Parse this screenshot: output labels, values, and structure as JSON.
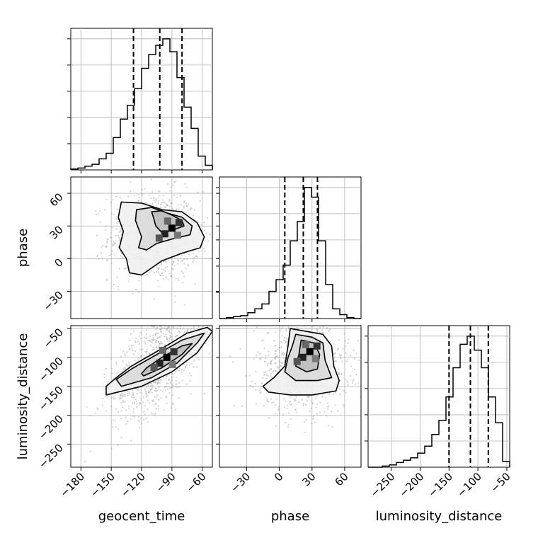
{
  "chart_data": {
    "type": "corner",
    "parameters": [
      {
        "name": "geocent_time",
        "label": "geocent_time",
        "range": [
          -190,
          -50
        ],
        "ticks": [
          -180,
          -150,
          -120,
          -90,
          -60
        ],
        "tick_labels": [
          "−180",
          "−150",
          "−120",
          "−90",
          "−60"
        ],
        "quantiles": [
          -128,
          -102,
          -80
        ],
        "hist_x": [
          -190,
          -183,
          -176,
          -169,
          -162,
          -155,
          -148,
          -141,
          -134,
          -127,
          -120,
          -113,
          -106,
          -99,
          -92,
          -85,
          -78,
          -71,
          -64,
          -57,
          -50
        ],
        "hist_counts": [
          1,
          2,
          4,
          6,
          12,
          18,
          35,
          55,
          70,
          88,
          110,
          125,
          135,
          142,
          128,
          100,
          68,
          45,
          15,
          5
        ]
      },
      {
        "name": "phase",
        "label": "phase",
        "range": [
          -55,
          75
        ],
        "ticks": [
          -30,
          0,
          30,
          60
        ],
        "tick_labels": [
          "−30",
          "0",
          "30",
          "60"
        ],
        "quantiles": [
          5,
          22,
          35
        ],
        "hist_x": [
          -55,
          -48.5,
          -42,
          -35.5,
          -29,
          -22.5,
          -16,
          -9.5,
          -3,
          3.5,
          10,
          16.5,
          23,
          29.5,
          36,
          42.5,
          49,
          55.5,
          62,
          68.5,
          75
        ],
        "hist_counts": [
          0,
          1,
          2,
          3,
          6,
          10,
          15,
          28,
          40,
          55,
          80,
          100,
          135,
          125,
          80,
          35,
          10,
          4,
          1,
          0
        ]
      },
      {
        "name": "luminosity_distance",
        "label": "luminosity_distance",
        "range": [
          -290,
          -45
        ],
        "ticks": [
          -250,
          -200,
          -150,
          -100,
          -50
        ],
        "tick_labels": [
          "−250",
          "−200",
          "−150",
          "−100",
          "−50"
        ],
        "quantiles": [
          -150,
          -113,
          -82
        ],
        "hist_x": [
          -290,
          -277.75,
          -265.5,
          -253.25,
          -241,
          -228.75,
          -216.5,
          -204.25,
          -192,
          -179.75,
          -167.5,
          -155.25,
          -143,
          -130.75,
          -118.5,
          -106.25,
          -94,
          -81.75,
          -69.5,
          -57.25,
          -45
        ],
        "hist_counts": [
          0,
          0,
          1,
          2,
          4,
          6,
          8,
          12,
          18,
          28,
          40,
          60,
          85,
          105,
          112,
          100,
          85,
          60,
          38,
          5
        ]
      }
    ],
    "pair_plots": [
      {
        "x_param": "geocent_time",
        "y_param": "phase",
        "ylim": [
          -55,
          75
        ],
        "peak": [
          -90,
          28
        ],
        "contours": [
          [
            [
              -140,
              52
            ],
            [
              -120,
              51
            ],
            [
              -100,
              45
            ],
            [
              -80,
              43
            ],
            [
              -65,
              33
            ],
            [
              -58,
              20
            ],
            [
              -62,
              10
            ],
            [
              -80,
              5
            ],
            [
              -100,
              -2
            ],
            [
              -120,
              -15
            ],
            [
              -132,
              -13
            ],
            [
              -135,
              0
            ],
            [
              -142,
              10
            ],
            [
              -138,
              25
            ],
            [
              -143,
              38
            ]
          ],
          [
            [
              -125,
              45
            ],
            [
              -110,
              47
            ],
            [
              -95,
              42
            ],
            [
              -80,
              38
            ],
            [
              -70,
              30
            ],
            [
              -72,
              22
            ],
            [
              -90,
              18
            ],
            [
              -105,
              14
            ],
            [
              -115,
              8
            ],
            [
              -123,
              10
            ],
            [
              -120,
              20
            ],
            [
              -126,
              35
            ]
          ],
          [
            [
              -110,
              43
            ],
            [
              -100,
              44
            ],
            [
              -90,
              40
            ],
            [
              -80,
              35
            ],
            [
              -78,
              30
            ],
            [
              -90,
              26
            ],
            [
              -100,
              24
            ],
            [
              -106,
              30
            ],
            [
              -108,
              37
            ]
          ]
        ]
      },
      {
        "x_param": "geocent_time",
        "y_param": "luminosity_distance",
        "ylim": [
          -290,
          -45
        ],
        "peak": [
          -95,
          -100
        ],
        "contours": [
          [
            [
              -155,
              -165
            ],
            [
              -120,
              -150
            ],
            [
              -90,
              -125
            ],
            [
              -65,
              -92
            ],
            [
              -50,
              -55
            ],
            [
              -55,
              -48
            ],
            [
              -75,
              -58
            ],
            [
              -105,
              -90
            ],
            [
              -130,
              -115
            ],
            [
              -145,
              -135
            ],
            [
              -155,
              -150
            ]
          ],
          [
            [
              -140,
              -150
            ],
            [
              -110,
              -135
            ],
            [
              -85,
              -110
            ],
            [
              -65,
              -75
            ],
            [
              -58,
              -58
            ],
            [
              -80,
              -70
            ],
            [
              -110,
              -100
            ],
            [
              -130,
              -120
            ],
            [
              -145,
              -138
            ]
          ],
          [
            [
              -118,
              -132
            ],
            [
              -100,
              -118
            ],
            [
              -80,
              -95
            ],
            [
              -70,
              -76
            ],
            [
              -80,
              -80
            ],
            [
              -100,
              -100
            ],
            [
              -115,
              -118
            ],
            [
              -120,
              -128
            ]
          ]
        ]
      },
      {
        "x_param": "phase",
        "y_param": "luminosity_distance",
        "ylim": [
          -290,
          -45
        ],
        "peak": [
          28,
          -90
        ],
        "contours": [
          [
            [
              10,
              -50
            ],
            [
              25,
              -55
            ],
            [
              40,
              -60
            ],
            [
              48,
              -80
            ],
            [
              50,
              -115
            ],
            [
              55,
              -140
            ],
            [
              52,
              -158
            ],
            [
              30,
              -165
            ],
            [
              10,
              -165
            ],
            [
              -10,
              -160
            ],
            [
              -15,
              -150
            ],
            [
              -5,
              -135
            ],
            [
              5,
              -115
            ],
            [
              8,
              -80
            ]
          ],
          [
            [
              15,
              -60
            ],
            [
              30,
              -65
            ],
            [
              40,
              -75
            ],
            [
              42,
              -105
            ],
            [
              48,
              -135
            ],
            [
              35,
              -140
            ],
            [
              15,
              -140
            ],
            [
              5,
              -125
            ],
            [
              8,
              -100
            ],
            [
              12,
              -80
            ]
          ],
          [
            [
              20,
              -70
            ],
            [
              32,
              -75
            ],
            [
              37,
              -95
            ],
            [
              35,
              -120
            ],
            [
              25,
              -125
            ],
            [
              15,
              -115
            ],
            [
              18,
              -95
            ]
          ]
        ]
      }
    ]
  }
}
